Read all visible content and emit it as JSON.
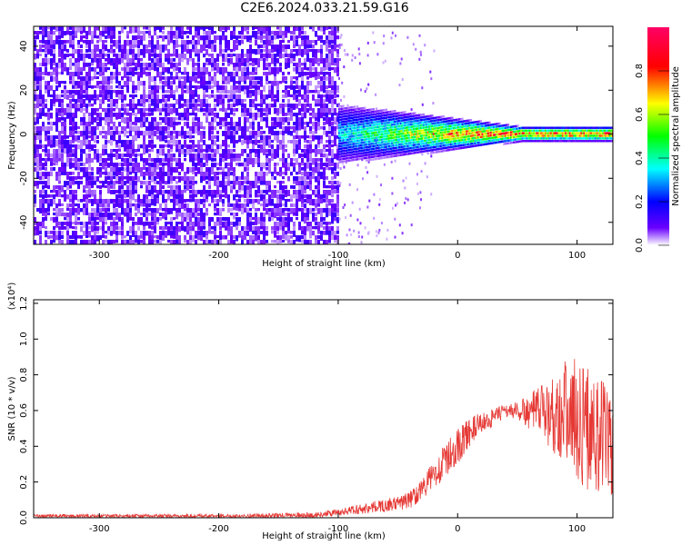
{
  "title": "C2E6.2024.033.21.59.G16",
  "chart_data": [
    {
      "type": "heatmap",
      "xlabel": "Height of straight line (km)",
      "ylabel": "Frequency (Hz)",
      "xlim": [
        -355,
        130
      ],
      "ylim": [
        -50,
        49
      ],
      "xticks": [
        "-300",
        "-200",
        "-100",
        "0",
        "100"
      ],
      "yticks": [
        "-40",
        "-20",
        "0",
        "20",
        "40"
      ],
      "colorbar": {
        "label": "Normalized spectral amplitude",
        "range": [
          0.0,
          1.0
        ],
        "ticks": [
          "0.0",
          "0.2",
          "0.4",
          "0.6",
          "0.8"
        ],
        "colormap": [
          "#ffffff",
          "#6a00ff",
          "#0000ff",
          "#00ffff",
          "#00ff00",
          "#ffff00",
          "#ff0000",
          "#ff0066"
        ]
      },
      "features": {
        "noise_region_x": [
          -355,
          -100
        ],
        "noise_amplitude": 0.1,
        "signal_band_x": [
          -100,
          130
        ],
        "signal_band_center_hz": 0,
        "signal_band_halfwidth_hz": [
          8,
          2
        ],
        "signal_peak_amplitude": 0.85
      }
    },
    {
      "type": "line",
      "xlabel": "Height of straight line (km)",
      "ylabel": "SNR (10 * v/v)",
      "y_multiplier": "(x10⁴)",
      "xlim": [
        -355,
        130
      ],
      "ylim": [
        0,
        1.22
      ],
      "xticks": [
        "-300",
        "-200",
        "-100",
        "0",
        "100"
      ],
      "yticks": [
        "0.0",
        "0.2",
        "0.4",
        "0.6",
        "0.8",
        "1.0",
        "1.2"
      ],
      "color": "#e53935",
      "envelope": {
        "x": [
          -355,
          -300,
          -200,
          -120,
          -100,
          -80,
          -50,
          -40,
          -30,
          -20,
          -10,
          0,
          10,
          20,
          30,
          40,
          50,
          60,
          70,
          80,
          90,
          100,
          110,
          120,
          130
        ],
        "y": [
          0.01,
          0.01,
          0.01,
          0.015,
          0.03,
          0.05,
          0.08,
          0.1,
          0.16,
          0.24,
          0.32,
          0.4,
          0.48,
          0.53,
          0.56,
          0.6,
          0.6,
          0.59,
          0.6,
          0.58,
          0.6,
          0.55,
          0.5,
          0.45,
          0.42
        ],
        "spread": [
          0.01,
          0.01,
          0.01,
          0.015,
          0.02,
          0.03,
          0.04,
          0.05,
          0.06,
          0.08,
          0.1,
          0.1,
          0.08,
          0.06,
          0.05,
          0.04,
          0.05,
          0.1,
          0.15,
          0.22,
          0.3,
          0.35,
          0.35,
          0.35,
          0.35
        ]
      }
    }
  ]
}
